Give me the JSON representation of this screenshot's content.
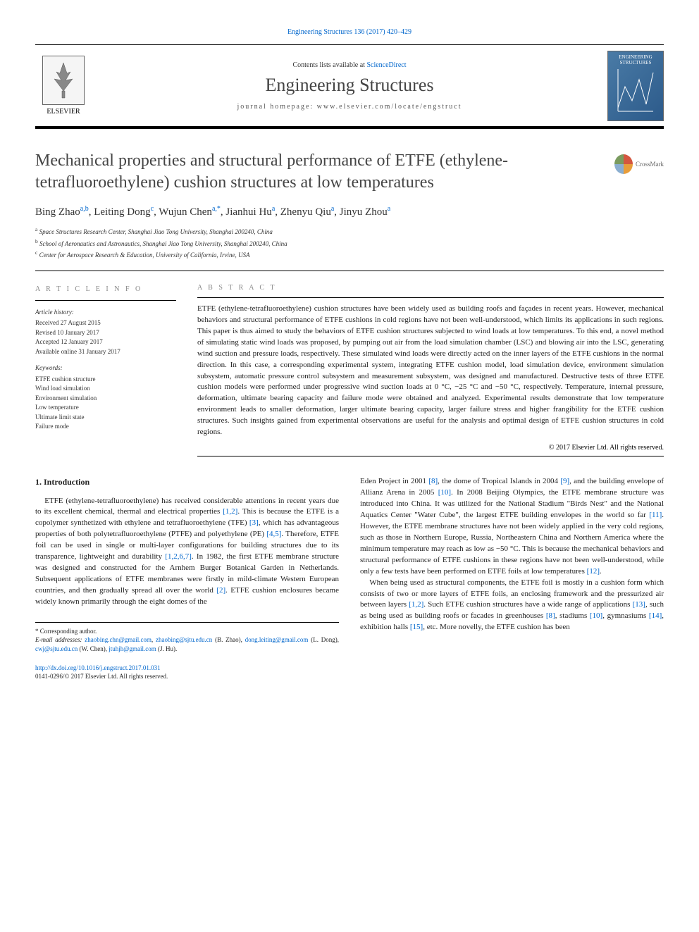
{
  "header": {
    "citation_link": "Engineering Structures 136 (2017) 420–429",
    "contents_prefix": "Contents lists available at ",
    "contents_link": "ScienceDirect",
    "journal_name": "Engineering Structures",
    "homepage_label": "journal homepage: www.elsevier.com/locate/engstruct",
    "publisher": "ELSEVIER",
    "cover_label": "ENGINEERING STRUCTURES",
    "crossmark_label": "CrossMark"
  },
  "article": {
    "title": "Mechanical properties and structural performance of ETFE (ethylene-tetrafluoroethylene) cushion structures at low temperatures",
    "authors": [
      {
        "name": "Bing Zhao",
        "aff": "a,b"
      },
      {
        "name": "Leiting Dong",
        "aff": "c"
      },
      {
        "name": "Wujun Chen",
        "aff": "a,*"
      },
      {
        "name": "Jianhui Hu",
        "aff": "a"
      },
      {
        "name": "Zhenyu Qiu",
        "aff": "a"
      },
      {
        "name": "Jinyu Zhou",
        "aff": "a"
      }
    ],
    "affiliations": [
      {
        "sup": "a",
        "text": "Space Structures Research Center, Shanghai Jiao Tong University, Shanghai 200240, China"
      },
      {
        "sup": "b",
        "text": "School of Aeronautics and Astronautics, Shanghai Jiao Tong University, Shanghai 200240, China"
      },
      {
        "sup": "c",
        "text": "Center for Aerospace Research & Education, University of California, Irvine, USA"
      }
    ]
  },
  "article_info": {
    "heading": "A R T I C L E   I N F O",
    "history_heading": "Article history:",
    "history": [
      "Received 27 August 2015",
      "Revised 10 January 2017",
      "Accepted 12 January 2017",
      "Available online 31 January 2017"
    ],
    "keywords_heading": "Keywords:",
    "keywords": [
      "ETFE cushion structure",
      "Wind load simulation",
      "Environment simulation",
      "Low temperature",
      "Ultimate limit state",
      "Failure mode"
    ]
  },
  "abstract": {
    "heading": "A B S T R A C T",
    "text": "ETFE (ethylene-tetrafluoroethylene) cushion structures have been widely used as building roofs and façades in recent years. However, mechanical behaviors and structural performance of ETFE cushions in cold regions have not been well-understood, which limits its applications in such regions. This paper is thus aimed to study the behaviors of ETFE cushion structures subjected to wind loads at low temperatures. To this end, a novel method of simulating static wind loads was proposed, by pumping out air from the load simulation chamber (LSC) and blowing air into the LSC, generating wind suction and pressure loads, respectively. These simulated wind loads were directly acted on the inner layers of the ETFE cushions in the normal direction. In this case, a corresponding experimental system, integrating ETFE cushion model, load simulation device, environment simulation subsystem, automatic pressure control subsystem and measurement subsystem, was designed and manufactured. Destructive tests of three ETFE cushion models were performed under progressive wind suction loads at 0 °C, −25 °C and −50 °C, respectively. Temperature, internal pressure, deformation, ultimate bearing capacity and failure mode were obtained and analyzed. Experimental results demonstrate that low temperature environment leads to smaller deformation, larger ultimate bearing capacity, larger failure stress and higher frangibility for the ETFE cushion structures. Such insights gained from experimental observations are useful for the analysis and optimal design of ETFE cushion structures in cold regions.",
    "copyright": "© 2017 Elsevier Ltd. All rights reserved."
  },
  "body": {
    "section1_heading": "1. Introduction",
    "col1_p1": "ETFE (ethylene-tetrafluoroethylene) has received considerable attentions in recent years due to its excellent chemical, thermal and electrical properties [1,2]. This is because the ETFE is a copolymer synthetized with ethylene and tetrafluoroethylene (TFE) [3], which has advantageous properties of both polytetrafluoroethylene (PTFE) and polyethylene (PE) [4,5]. Therefore, ETFE foil can be used in single or multi-layer configurations for building structures due to its transparence, lightweight and durability [1,2,6,7]. In 1982, the first ETFE membrane structure was designed and constructed for the Arnhem Burger Botanical Garden in Netherlands. Subsequent applications of ETFE membranes were firstly in mild-climate Western European countries, and then gradually spread all over the world [2]. ETFE cushion enclosures became widely known primarily through the eight domes of the",
    "col2_p1": "Eden Project in 2001 [8], the dome of Tropical Islands in 2004 [9], and the building envelope of Allianz Arena in 2005 [10]. In 2008 Beijing Olympics, the ETFE membrane structure was introduced into China. It was utilized for the National Stadium \"Birds Nest\" and the National Aquatics Center \"Water Cube\", the largest ETFE building envelopes in the world so far [11]. However, the ETFE membrane structures have not been widely applied in the very cold regions, such as those in Northern Europe, Russia, Northeastern China and Northern America where the minimum temperature may reach as low as −50 °C. This is because the mechanical behaviors and structural performance of ETFE cushions in these regions have not been well-understood, while only a few tests have been performed on ETFE foils at low temperatures [12].",
    "col2_p2": "When being used as structural components, the ETFE foil is mostly in a cushion form which consists of two or more layers of ETFE foils, an enclosing framework and the pressurized air between layers [1,2]. Such ETFE cushion structures have a wide range of applications [13], such as being used as building roofs or facades in greenhouses [8], stadiums [10], gymnasiums [14], exhibition halls [15], etc. More novelly, the ETFE cushion has been"
  },
  "footnotes": {
    "corresponding": "* Corresponding author.",
    "emails_label": "E-mail addresses: ",
    "emails": [
      {
        "email": "zhaobing.chn@gmail.com",
        "suffix": ", "
      },
      {
        "email": "zhaobing@sjtu.edu.cn",
        "suffix": " (B. Zhao), "
      },
      {
        "email": "dong.leiting@gmail.com",
        "suffix": " (L. Dong), "
      },
      {
        "email": "cwj@sjtu.edu.cn",
        "suffix": " (W. Chen), "
      },
      {
        "email": "jtuhjh@gmail.com",
        "suffix": " (J. Hu)."
      }
    ]
  },
  "footer": {
    "doi": "http://dx.doi.org/10.1016/j.engstruct.2017.01.031",
    "issn_copyright": "0141-0296/© 2017 Elsevier Ltd. All rights reserved."
  },
  "colors": {
    "link": "#0066cc",
    "heading_gray": "#888888",
    "text": "#222222"
  }
}
